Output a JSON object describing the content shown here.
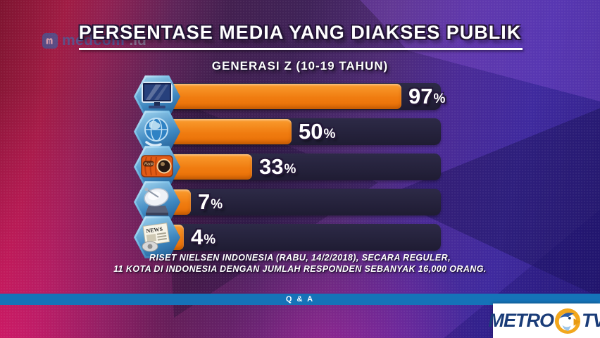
{
  "header": {
    "title": "PERSENTASE MEDIA YANG DIAKSES PUBLIK",
    "subtitle": "GENERASI Z (10-19 TAHUN)"
  },
  "watermark": {
    "brand": "medcom",
    "suffix": ".id"
  },
  "chart_data": {
    "type": "bar",
    "orientation": "horizontal",
    "title": "PERSENTASE MEDIA YANG DIAKSES PUBLIK",
    "subtitle": "GENERASI Z (10-19 TAHUN)",
    "unit": "%",
    "xlim": [
      0,
      100
    ],
    "categories": [
      "tv",
      "internet",
      "radio",
      "satellite-tv",
      "newspaper"
    ],
    "values": [
      97,
      50,
      33,
      7,
      4
    ],
    "rows": [
      {
        "icon": "tv-icon",
        "value": 97
      },
      {
        "icon": "globe-icon",
        "value": 50
      },
      {
        "icon": "radio-icon",
        "value": 33,
        "icon_text": "Radio"
      },
      {
        "icon": "satellite-dish-icon",
        "value": 7
      },
      {
        "icon": "newspaper-icon",
        "value": 4,
        "icon_text": "NEWS"
      }
    ],
    "source_line1": "RISET NIELSEN INDONESIA (RABU, 14/2/2018), SECARA REGULER,",
    "source_line2": "11 KOTA DI INDONESIA DENGAN JUMLAH RESPONDEN SEBANYAK 16,000 ORANG.",
    "legend": "none",
    "grid": false
  },
  "footer": {
    "qa_label": "Q & A"
  },
  "branding": {
    "channel": "METRO TV",
    "metro": "METRO",
    "tv": "TV"
  },
  "colors": {
    "bar_orange": "#f08014",
    "track_navy": "#262239",
    "qa_blue": "#1573b8",
    "metro_navy": "#1a3c78",
    "eagle_gold": "#f2a71d",
    "medcom_blue": "#2272b9",
    "title_white": "#ffffff"
  }
}
